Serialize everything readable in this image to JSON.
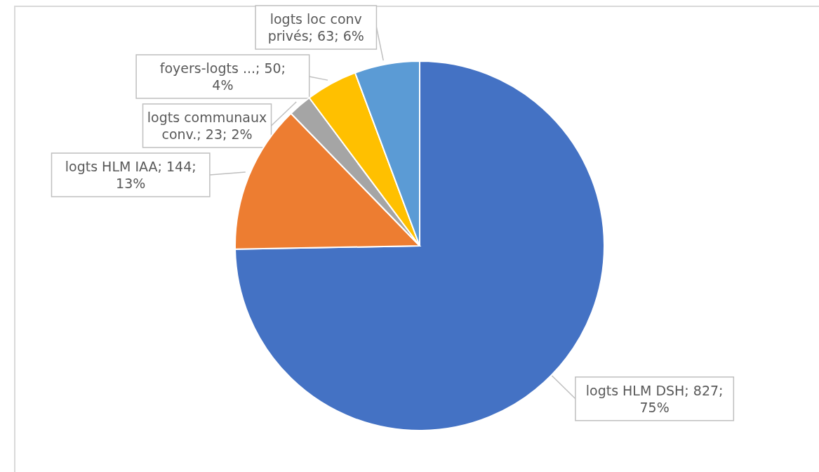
{
  "chart_data": {
    "type": "pie",
    "categories": [
      "logts HLM DSH",
      "logts HLM IAA",
      "logts communaux conv.",
      "foyers-logts ...",
      "logts loc conv privés"
    ],
    "values": [
      827,
      144,
      23,
      50,
      63
    ],
    "colors": [
      "#4472c4",
      "#ed7d31",
      "#a5a5a5",
      "#ffc000",
      "#5b9bd5"
    ],
    "value_labels": [
      "827; 75%",
      "144; 13%",
      "23; 2%",
      "50; 4%",
      "63; 6%"
    ]
  }
}
